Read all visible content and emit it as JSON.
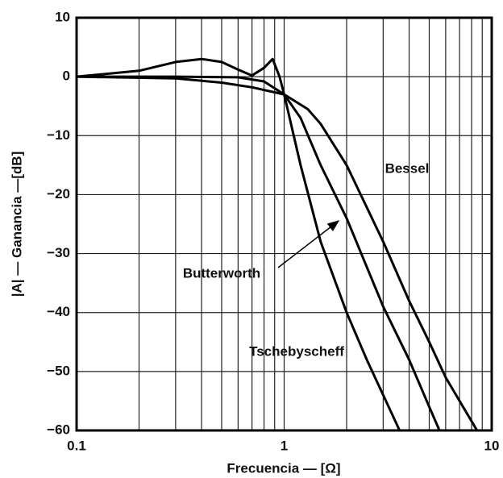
{
  "chart_data": {
    "type": "line",
    "x_label": "Frecuencia — [Ω]",
    "y_label": "|A| — Ganancia —[dB]",
    "xscale": "log",
    "xlim": [
      0.1,
      10
    ],
    "xticks": [
      0.1,
      1,
      10
    ],
    "ylim": [
      -60,
      10
    ],
    "yticks": [
      10,
      0,
      {
        "value": -10,
        "label": "−10"
      },
      {
        "value": -20,
        "label": "−20"
      },
      {
        "value": -30,
        "label": "−30"
      },
      {
        "value": -40,
        "label": "−40"
      },
      {
        "value": -50,
        "label": "−50"
      },
      {
        "value": -60,
        "label": "−60"
      }
    ],
    "grid": true,
    "series": [
      {
        "name": "Tschebyscheff",
        "color": "#000000",
        "x": [
          0.1,
          0.2,
          0.3,
          0.4,
          0.5,
          0.6,
          0.7,
          0.8,
          0.88,
          0.95,
          1,
          1.2,
          1.5,
          2,
          2.5,
          3,
          3.6
        ],
        "values": [
          0,
          1,
          2.5,
          3,
          2.5,
          1.2,
          0.2,
          1.5,
          3,
          0,
          -3,
          -15,
          -28,
          -40,
          -48,
          -54,
          -60
        ]
      },
      {
        "name": "Butterworth",
        "color": "#000000",
        "x": [
          0.1,
          0.3,
          0.6,
          0.8,
          1,
          1.2,
          1.5,
          2,
          3,
          4,
          5,
          5.6
        ],
        "values": [
          0,
          0,
          -0.1,
          -0.8,
          -3,
          -7,
          -15,
          -24,
          -39,
          -48,
          -56,
          -60
        ]
      },
      {
        "name": "Bessel",
        "color": "#000000",
        "x": [
          0.1,
          0.3,
          0.5,
          0.7,
          1,
          1.3,
          1.5,
          2,
          3,
          4,
          5,
          6,
          7,
          8.5
        ],
        "values": [
          0,
          -0.3,
          -1,
          -1.8,
          -3,
          -5.5,
          -8,
          -15,
          -28,
          -38,
          -45,
          -51,
          -55,
          -60
        ]
      }
    ]
  }
}
